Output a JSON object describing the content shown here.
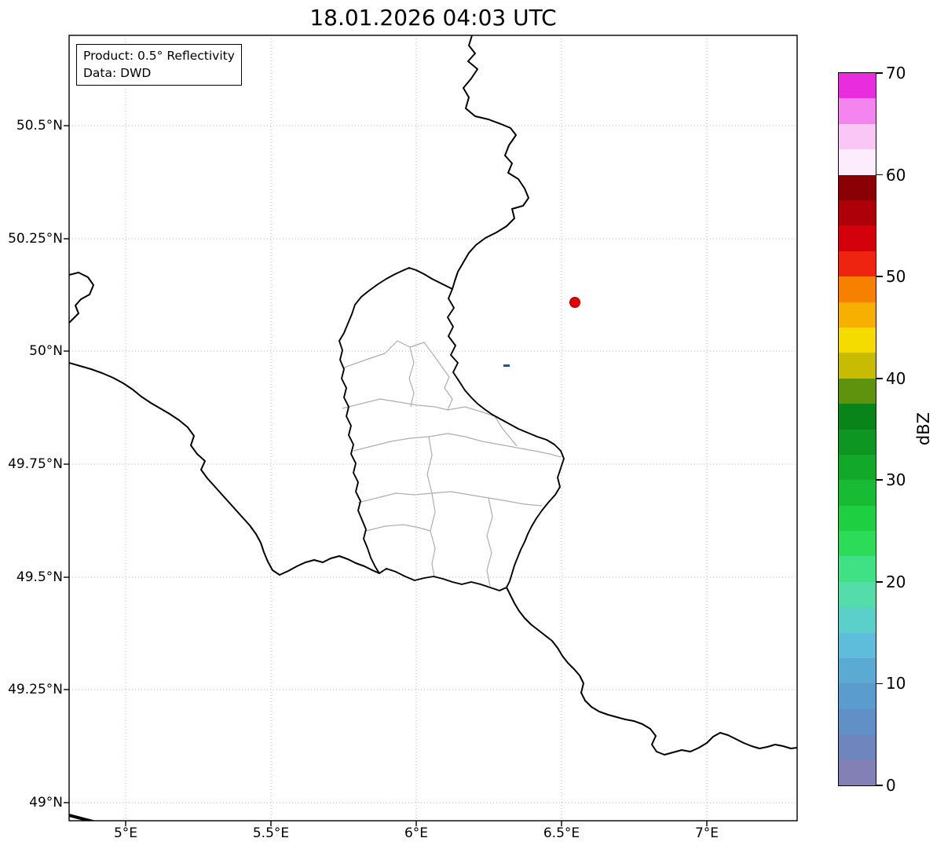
{
  "title": "18.01.2026 04:03 UTC",
  "annotation": {
    "line1": "Product: 0.5° Reflectivity",
    "line2": "Data: DWD"
  },
  "axes": {
    "y_tick_labels": [
      "50.5°N",
      "50.25°N",
      "50°N",
      "49.75°N",
      "49.5°N",
      "49.25°N",
      "49°N"
    ],
    "x_tick_labels": [
      "5°E",
      "5.5°E",
      "6°E",
      "6.5°E",
      "7°E"
    ]
  },
  "colorbar": {
    "label": "dBZ",
    "min": 0,
    "max": 70,
    "tick_labels": [
      "0",
      "10",
      "20",
      "30",
      "40",
      "50",
      "60",
      "70"
    ],
    "colors_bottom_to_top": [
      "#8280b4",
      "#6f85bd",
      "#6190c6",
      "#5a9ccd",
      "#5aaad3",
      "#5ebdda",
      "#5bd0cb",
      "#54dcaa",
      "#40e084",
      "#2cdb58",
      "#1ecf41",
      "#17bc34",
      "#12a92b",
      "#0d9622",
      "#098419",
      "#5f930e",
      "#c8bc03",
      "#f4dc00",
      "#f8b000",
      "#f88000",
      "#ef2410",
      "#d4000c",
      "#ae0008",
      "#8b0004",
      "#fdecfb",
      "#f9c6f5",
      "#f484ee",
      "#ea2cdf"
    ]
  },
  "map": {
    "radar_marker": {
      "color": "#e80000"
    },
    "echo_speck": {
      "color": "#2d5382"
    }
  }
}
